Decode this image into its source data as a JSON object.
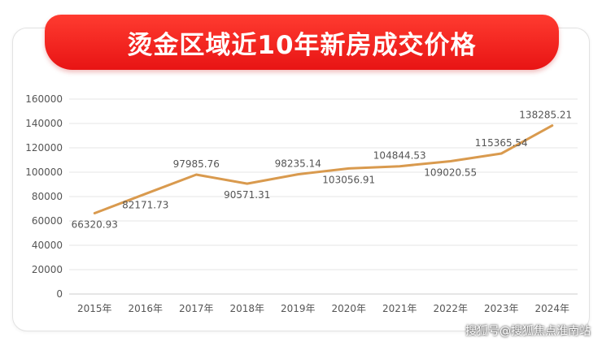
{
  "title": "烫金区域近10年新房成交价格",
  "watermark": "搜狐号@搜狐焦点淮南站",
  "colors": {
    "banner": "#e81414",
    "line": "#d99a4e",
    "grid": "#e6e6e6",
    "text": "#555555"
  },
  "chart_data": {
    "type": "line",
    "title": "烫金区域近10年新房成交价格",
    "categories": [
      "2015年",
      "2016年",
      "2017年",
      "2018年",
      "2019年",
      "2020年",
      "2021年",
      "2022年",
      "2023年",
      "2024年"
    ],
    "series": [
      {
        "values": [
          66320.93,
          82171.73,
          97985.76,
          90571.31,
          98235.14,
          103056.91,
          104844.53,
          109020.55,
          115365.54,
          138285.21
        ]
      }
    ],
    "value_labels": [
      "66320.93",
      "82171.73",
      "97985.76",
      "90571.31",
      "98235.14",
      "103056.91",
      "104844.53",
      "109020.55",
      "115365.54",
      "138285.21"
    ],
    "y_ticks": [
      "0",
      "20000",
      "40000",
      "60000",
      "80000",
      "100000",
      "120000",
      "140000",
      "160000"
    ],
    "ylim": [
      0,
      160000
    ],
    "grid": true,
    "legend": "none"
  }
}
